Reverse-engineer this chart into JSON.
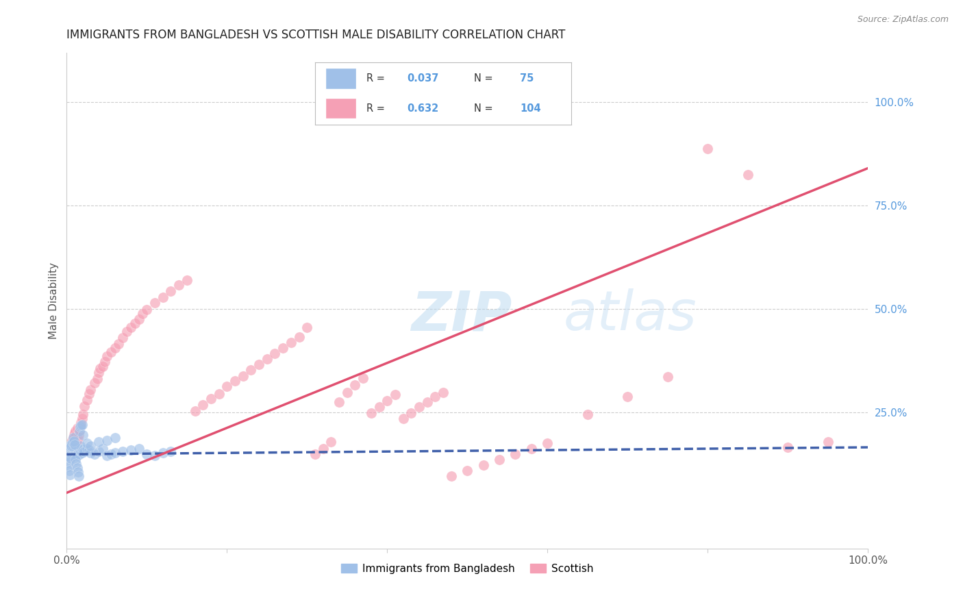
{
  "title": "IMMIGRANTS FROM BANGLADESH VS SCOTTISH MALE DISABILITY CORRELATION CHART",
  "source": "Source: ZipAtlas.com",
  "ylabel": "Male Disability",
  "xlim": [
    0,
    1.0
  ],
  "ylim": [
    -0.08,
    1.12
  ],
  "legend_entries": [
    {
      "label": "Immigrants from Bangladesh",
      "color": "#a8c8ea",
      "line_color": "#4477bb",
      "R": "0.037",
      "N": "75"
    },
    {
      "label": "Scottish",
      "color": "#f5a0b8",
      "line_color": "#e05070",
      "R": "0.632",
      "N": "104"
    }
  ],
  "blue_scatter_x": [
    0.001,
    0.002,
    0.002,
    0.003,
    0.003,
    0.004,
    0.004,
    0.005,
    0.005,
    0.006,
    0.006,
    0.007,
    0.007,
    0.008,
    0.008,
    0.009,
    0.009,
    0.01,
    0.01,
    0.011,
    0.011,
    0.012,
    0.012,
    0.013,
    0.013,
    0.014,
    0.015,
    0.015,
    0.016,
    0.017,
    0.018,
    0.019,
    0.02,
    0.022,
    0.025,
    0.028,
    0.03,
    0.035,
    0.04,
    0.045,
    0.05,
    0.055,
    0.06,
    0.07,
    0.08,
    0.09,
    0.1,
    0.11,
    0.12,
    0.13,
    0.001,
    0.002,
    0.003,
    0.004,
    0.005,
    0.006,
    0.007,
    0.008,
    0.009,
    0.01,
    0.011,
    0.012,
    0.013,
    0.014,
    0.015,
    0.016,
    0.017,
    0.018,
    0.019,
    0.02,
    0.025,
    0.03,
    0.04,
    0.05,
    0.06
  ],
  "blue_scatter_y": [
    0.155,
    0.148,
    0.162,
    0.145,
    0.168,
    0.142,
    0.158,
    0.152,
    0.165,
    0.148,
    0.172,
    0.145,
    0.16,
    0.155,
    0.168,
    0.15,
    0.163,
    0.148,
    0.158,
    0.152,
    0.165,
    0.148,
    0.162,
    0.145,
    0.158,
    0.15,
    0.155,
    0.162,
    0.148,
    0.168,
    0.155,
    0.152,
    0.16,
    0.155,
    0.162,
    0.158,
    0.152,
    0.148,
    0.155,
    0.162,
    0.145,
    0.148,
    0.152,
    0.155,
    0.158,
    0.162,
    0.148,
    0.145,
    0.152,
    0.155,
    0.128,
    0.118,
    0.108,
    0.098,
    0.138,
    0.168,
    0.178,
    0.188,
    0.18,
    0.172,
    0.135,
    0.125,
    0.115,
    0.105,
    0.095,
    0.205,
    0.215,
    0.218,
    0.22,
    0.195,
    0.175,
    0.168,
    0.178,
    0.182,
    0.188
  ],
  "pink_scatter_x": [
    0.001,
    0.002,
    0.002,
    0.003,
    0.003,
    0.004,
    0.004,
    0.005,
    0.005,
    0.006,
    0.006,
    0.007,
    0.007,
    0.008,
    0.008,
    0.009,
    0.009,
    0.01,
    0.01,
    0.011,
    0.011,
    0.012,
    0.012,
    0.013,
    0.013,
    0.014,
    0.015,
    0.016,
    0.017,
    0.018,
    0.019,
    0.02,
    0.022,
    0.025,
    0.028,
    0.03,
    0.035,
    0.038,
    0.04,
    0.042,
    0.045,
    0.048,
    0.05,
    0.055,
    0.06,
    0.065,
    0.07,
    0.075,
    0.08,
    0.085,
    0.09,
    0.095,
    0.1,
    0.11,
    0.12,
    0.13,
    0.14,
    0.15,
    0.16,
    0.17,
    0.18,
    0.19,
    0.2,
    0.21,
    0.22,
    0.23,
    0.24,
    0.25,
    0.26,
    0.27,
    0.28,
    0.29,
    0.3,
    0.31,
    0.32,
    0.33,
    0.34,
    0.35,
    0.36,
    0.37,
    0.38,
    0.39,
    0.4,
    0.41,
    0.42,
    0.43,
    0.44,
    0.45,
    0.46,
    0.47,
    0.48,
    0.5,
    0.52,
    0.54,
    0.56,
    0.58,
    0.6,
    0.65,
    0.7,
    0.75,
    0.8,
    0.85,
    0.9,
    0.95
  ],
  "pink_scatter_y": [
    0.158,
    0.148,
    0.168,
    0.145,
    0.162,
    0.142,
    0.165,
    0.152,
    0.172,
    0.148,
    0.178,
    0.145,
    0.182,
    0.155,
    0.188,
    0.162,
    0.195,
    0.165,
    0.2,
    0.168,
    0.205,
    0.172,
    0.195,
    0.18,
    0.212,
    0.185,
    0.195,
    0.205,
    0.215,
    0.225,
    0.235,
    0.245,
    0.265,
    0.28,
    0.295,
    0.305,
    0.32,
    0.33,
    0.345,
    0.355,
    0.36,
    0.372,
    0.385,
    0.395,
    0.405,
    0.415,
    0.43,
    0.445,
    0.455,
    0.465,
    0.475,
    0.488,
    0.498,
    0.515,
    0.528,
    0.542,
    0.558,
    0.57,
    0.252,
    0.268,
    0.282,
    0.295,
    0.312,
    0.325,
    0.338,
    0.352,
    0.365,
    0.378,
    0.392,
    0.405,
    0.418,
    0.432,
    0.455,
    0.148,
    0.162,
    0.178,
    0.275,
    0.298,
    0.315,
    0.332,
    0.248,
    0.262,
    0.278,
    0.292,
    0.235,
    0.248,
    0.262,
    0.275,
    0.288,
    0.298,
    0.095,
    0.108,
    0.122,
    0.135,
    0.148,
    0.162,
    0.175,
    0.245,
    0.288,
    0.335,
    0.888,
    0.825,
    0.165,
    0.178
  ],
  "blue_line_x": [
    0.0,
    1.0
  ],
  "blue_line_y": [
    0.148,
    0.165
  ],
  "pink_line_x": [
    0.0,
    1.0
  ],
  "pink_line_y": [
    0.055,
    0.84
  ],
  "watermark_text": "ZIP",
  "watermark_text2": "atlas",
  "bg_color": "#ffffff",
  "grid_color": "#cccccc",
  "blue_color": "#a0c0e8",
  "blue_line_color": "#4060aa",
  "pink_color": "#f5a0b5",
  "pink_line_color": "#e05070",
  "axis_label_color": "#5599dd",
  "title_color": "#222222",
  "title_fontsize": 12,
  "source_fontsize": 9,
  "legend_R_blue": "0.037",
  "legend_N_blue": "75",
  "legend_R_pink": "0.632",
  "legend_N_pink": "104"
}
